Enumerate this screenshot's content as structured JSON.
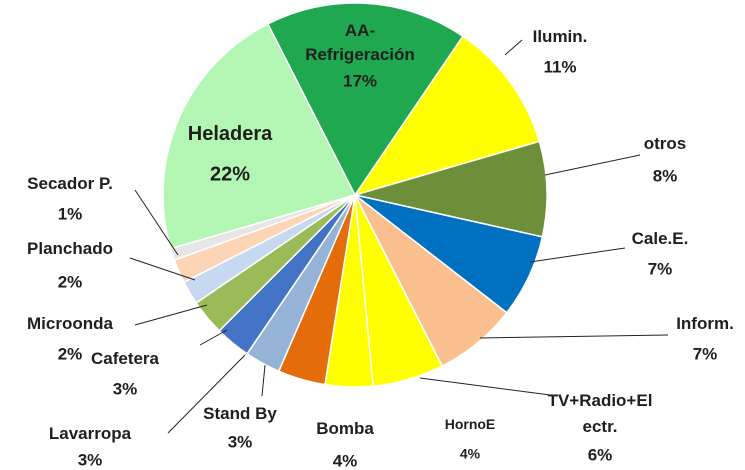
{
  "chart_data": {
    "type": "pie",
    "categories": [
      "AA-\nRefrigeración",
      "Ilumin.",
      "otros",
      "Cale.E.",
      "Inform.",
      "TV+Radio+El\nectr.",
      "HornoE",
      "Bomba",
      "Stand By",
      "Lavarropa",
      "Cafetera",
      "Microonda",
      "Planchado",
      "Secador P.",
      "Heladera"
    ],
    "values": [
      17,
      11,
      8,
      7,
      7,
      6,
      4,
      4,
      3,
      3,
      3,
      2,
      2,
      1,
      22
    ],
    "value_labels": [
      "17%",
      "11%",
      "8%",
      "7%",
      "7%",
      "6%",
      "4%",
      "4%",
      "3%",
      "3%",
      "3%",
      "2%",
      "2%",
      "1%",
      "22%"
    ],
    "colors": [
      "#1fa84f",
      "#ffff00",
      "#6e8f3a",
      "#0070c0",
      "#fabf8f",
      "#ffff00",
      "#ffff00",
      "#e46c0a",
      "#95b3d7",
      "#4472c4",
      "#9bbb59",
      "#c6d9f1",
      "#fbd5b5",
      "#e6e6e6",
      "#b3f5b3"
    ]
  }
}
